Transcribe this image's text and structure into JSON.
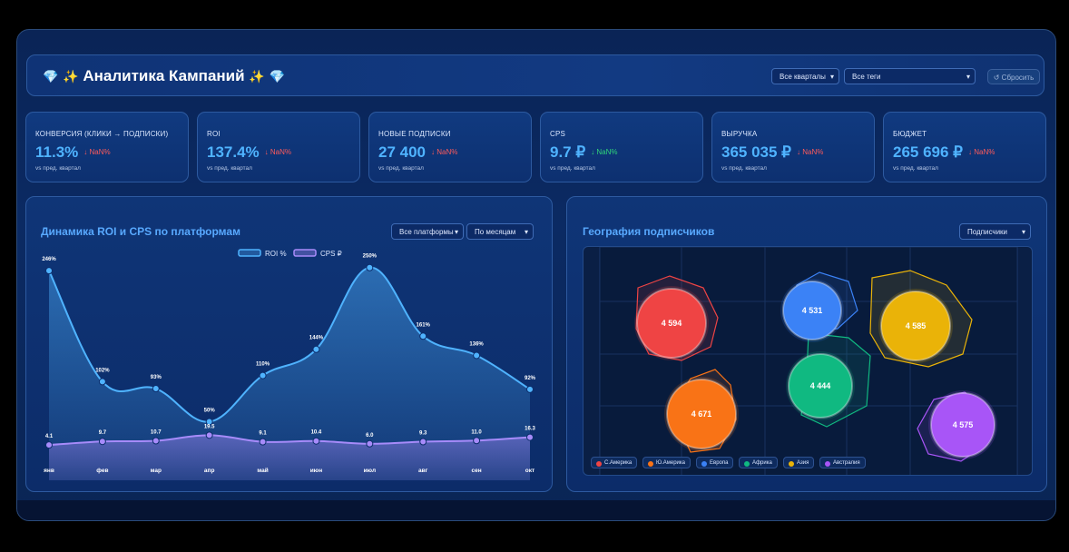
{
  "header": {
    "title": "Аналитика Кампаний",
    "gem_icon": "💎",
    "sparkle_icon": "✨",
    "filter_quarters": "Все кварталы",
    "filter_tags": "Все теги",
    "reset_label": "↺ Сбросить"
  },
  "kpis": [
    {
      "label": "Конверсия (клики → подписки)",
      "value": "11.3%",
      "delta": "↓ NaN%",
      "delta_color": "#ff5a5a",
      "sub": "vs пред. квартал"
    },
    {
      "label": "ROI",
      "value": "137.4%",
      "delta": "↓ NaN%",
      "delta_color": "#ff5a5a",
      "sub": "vs пред. квартал"
    },
    {
      "label": "Новые подписки",
      "value": "27 400",
      "delta": "↓ NaN%",
      "delta_color": "#ff5a5a",
      "sub": "vs пред. квартал"
    },
    {
      "label": "CPS",
      "value": "9.7 ₽",
      "delta": "↓ NaN%",
      "delta_color": "#2fd67a",
      "sub": "vs пред. квартал"
    },
    {
      "label": "Выручка",
      "value": "365 035 ₽",
      "delta": "↓ NaN%",
      "delta_color": "#ff5a5a",
      "sub": "vs пред. квартал"
    },
    {
      "label": "Бюджет",
      "value": "265 696 ₽",
      "delta": "↓ NaN%",
      "delta_color": "#ff5a5a",
      "sub": "vs пред. квартал"
    }
  ],
  "roi_panel": {
    "title": "Динамика ROI и CPS по платформам",
    "filter_platforms": "Все платформы",
    "filter_period": "По месяцам"
  },
  "geo_panel": {
    "title": "География подписчиков",
    "filter_metric": "Подписчики"
  },
  "chart_data": [
    {
      "type": "line",
      "title": "Динамика ROI и CPS по платформам",
      "categories": [
        "янв",
        "фев",
        "мар",
        "апр",
        "май",
        "июн",
        "июл",
        "авг",
        "сен",
        "окт"
      ],
      "series": [
        {
          "name": "ROI %",
          "values": [
            246,
            102,
            93,
            50,
            110,
            144,
            250,
            161,
            136,
            92
          ],
          "labels": [
            "246%",
            "102%",
            "93%",
            "50%",
            "110%",
            "144%",
            "250%",
            "161%",
            "136%",
            "92%"
          ],
          "color": "#4fb3ff"
        },
        {
          "name": "CPS ₽",
          "values": [
            4.1,
            9.7,
            10.7,
            19.5,
            9.1,
            10.4,
            6.0,
            9.3,
            11.0,
            16.3
          ],
          "labels": [
            "4.1",
            "9.7",
            "10.7",
            "19.5",
            "9.1",
            "10.4",
            "6.0",
            "9.3",
            "11.0",
            "16.3"
          ],
          "color": "#a78bfa"
        }
      ],
      "legend": "top-center"
    },
    {
      "type": "scatter",
      "title": "География подписчиков",
      "series": [
        {
          "name": "С.Америка",
          "value": 4594,
          "label": "4 594",
          "color": "#ef4444"
        },
        {
          "name": "Ю.Америка",
          "value": 4671,
          "label": "4 671",
          "color": "#f97316"
        },
        {
          "name": "Европа",
          "value": 4531,
          "label": "4 531",
          "color": "#3b82f6"
        },
        {
          "name": "Африка",
          "value": 4444,
          "label": "4 444",
          "color": "#10b981"
        },
        {
          "name": "Азия",
          "value": 4585,
          "label": "4 585",
          "color": "#eab308"
        },
        {
          "name": "Австралия",
          "value": 4575,
          "label": "4 575",
          "color": "#a855f7"
        }
      ],
      "legend": "bottom-left"
    }
  ]
}
